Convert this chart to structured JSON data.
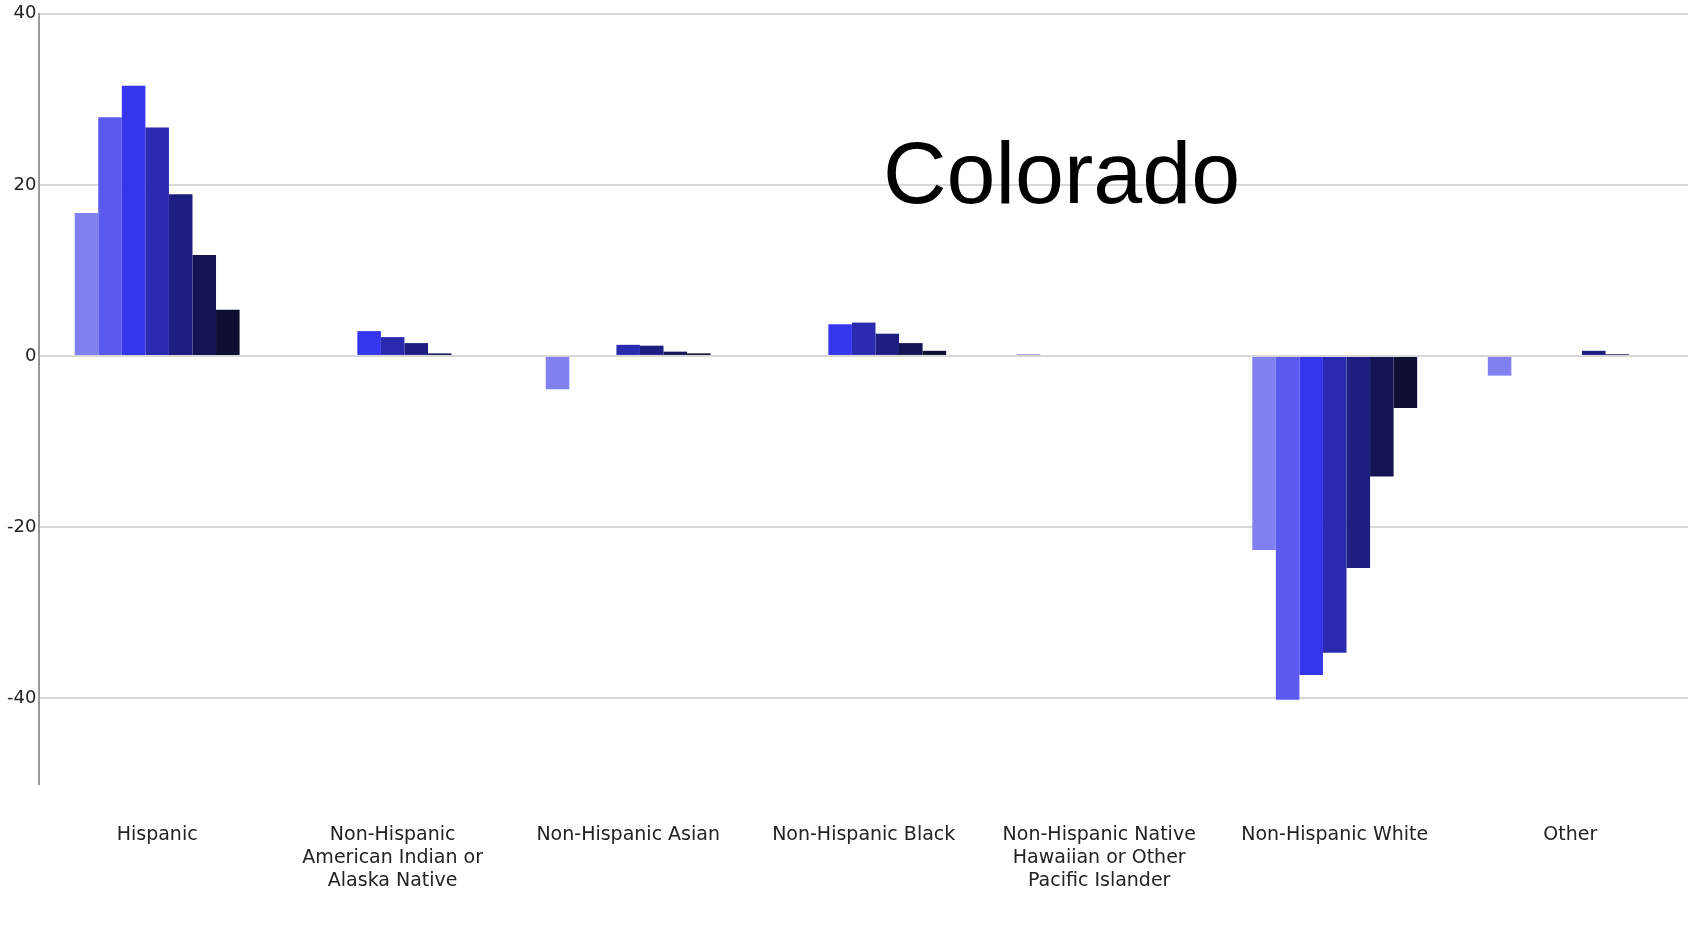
{
  "chart_data": {
    "type": "bar",
    "title": "Colorado",
    "categories": [
      "Hispanic",
      "Non-Hispanic American Indian or Alaska Native",
      "Non-Hispanic Asian",
      "Non-Hispanic Black",
      "Non-Hispanic Native Hawaiian or Other Pacific Islander",
      "Non-Hispanic White",
      "Other"
    ],
    "series": [
      {
        "color": "#8080f0",
        "values": [
          16.7,
          null,
          -3.9,
          null,
          0.2,
          -22.7,
          -2.3
        ]
      },
      {
        "color": "#5a5af0",
        "values": [
          27.9,
          null,
          null,
          null,
          null,
          -40.2,
          null
        ]
      },
      {
        "color": "#3535f0",
        "values": [
          31.6,
          2.9,
          null,
          3.7,
          null,
          -37.3,
          null
        ]
      },
      {
        "color": "#2a2ab0",
        "values": [
          26.7,
          2.2,
          1.3,
          3.9,
          null,
          -34.7,
          null
        ]
      },
      {
        "color": "#1e1e80",
        "values": [
          18.9,
          1.5,
          1.2,
          2.6,
          null,
          -24.8,
          0.6
        ]
      },
      {
        "color": "#141455",
        "values": [
          11.8,
          0.3,
          0.5,
          1.5,
          null,
          -14.1,
          0.2
        ]
      },
      {
        "color": "#0e0e30",
        "values": [
          5.4,
          null,
          0.3,
          0.6,
          null,
          -6.1,
          null
        ]
      }
    ],
    "ylim": [
      -50,
      40
    ],
    "yticks": [
      -40,
      -20,
      0,
      20,
      40
    ],
    "grid": "y"
  }
}
